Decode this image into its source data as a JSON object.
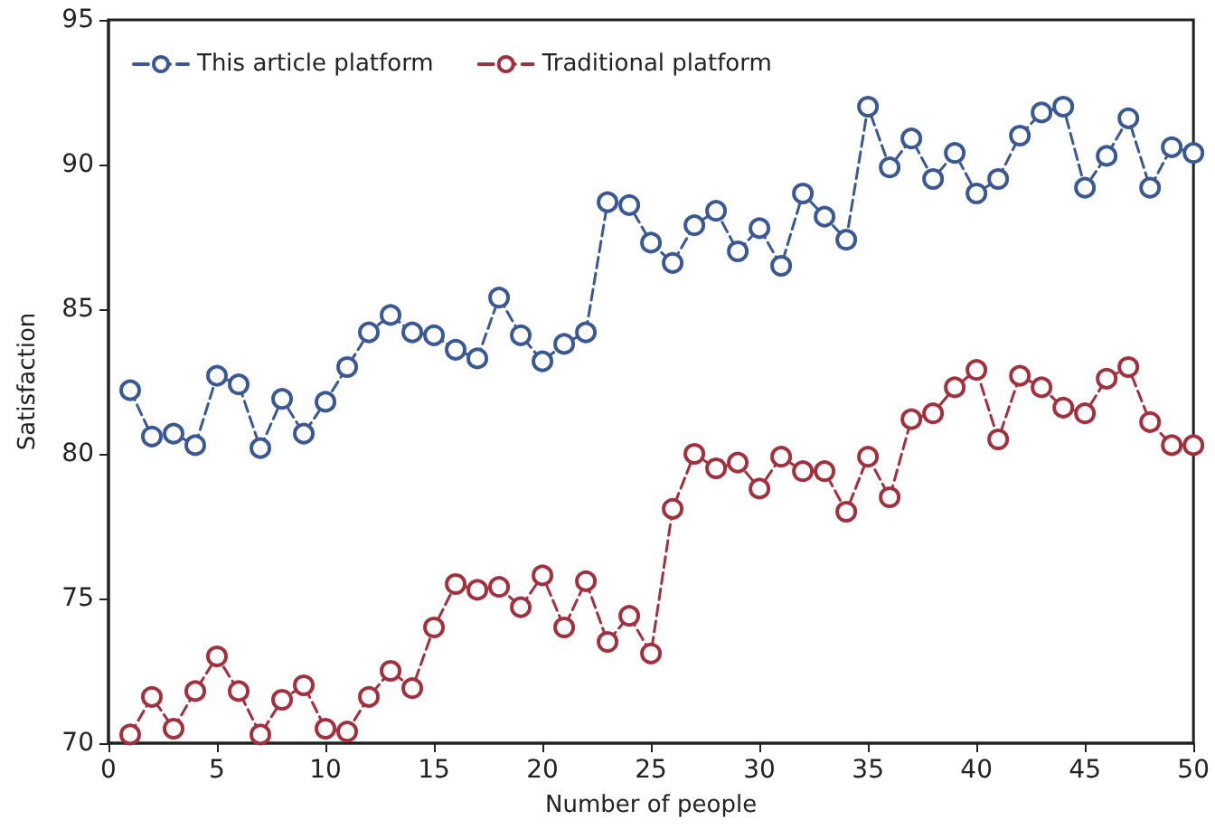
{
  "chart_data": {
    "type": "line",
    "xlabel": "Number of people",
    "ylabel": "Satisfaction",
    "x": [
      1,
      2,
      3,
      4,
      5,
      6,
      7,
      8,
      9,
      10,
      11,
      12,
      13,
      14,
      15,
      16,
      17,
      18,
      19,
      20,
      21,
      22,
      23,
      24,
      25,
      26,
      27,
      28,
      29,
      30,
      31,
      32,
      33,
      34,
      35,
      36,
      37,
      38,
      39,
      40,
      41,
      42,
      43,
      44,
      45,
      46,
      47,
      48,
      49,
      50
    ],
    "series": [
      {
        "name": "This article platform",
        "color": "#3a5894",
        "values": [
          82.2,
          80.6,
          80.7,
          80.3,
          82.7,
          82.4,
          80.2,
          81.9,
          80.7,
          81.8,
          83.0,
          84.2,
          84.8,
          84.2,
          84.1,
          83.6,
          83.3,
          85.4,
          84.1,
          83.2,
          83.8,
          84.2,
          88.7,
          88.6,
          87.3,
          86.6,
          87.9,
          88.4,
          87.0,
          87.8,
          86.5,
          89.0,
          88.2,
          87.4,
          92.0,
          89.9,
          90.9,
          89.5,
          90.4,
          89.0,
          89.5,
          91.0,
          91.8,
          92.0,
          89.2,
          90.3,
          91.6,
          89.2,
          90.6,
          90.4
        ]
      },
      {
        "name": "Traditional platform",
        "color": "#a3303f",
        "values": [
          70.3,
          71.6,
          70.5,
          71.8,
          73.0,
          71.8,
          70.3,
          71.5,
          72.0,
          70.5,
          70.4,
          71.6,
          72.5,
          71.9,
          74.0,
          75.5,
          75.3,
          75.4,
          74.7,
          75.8,
          74.0,
          75.6,
          73.5,
          74.4,
          73.1,
          78.1,
          80.0,
          79.5,
          79.7,
          78.8,
          79.9,
          79.4,
          79.4,
          78.0,
          79.9,
          78.5,
          81.2,
          81.4,
          82.3,
          82.9,
          80.5,
          82.7,
          82.3,
          81.6,
          81.4,
          82.6,
          83.0,
          81.1,
          80.3,
          80.3
        ]
      }
    ],
    "xlim": [
      0,
      50
    ],
    "xticks": [
      0,
      5,
      10,
      15,
      20,
      25,
      30,
      35,
      40,
      45,
      50
    ],
    "ylim": [
      70,
      95
    ],
    "yticks": [
      70,
      75,
      80,
      85,
      90,
      95
    ],
    "grid": false,
    "legend": "top left",
    "marker": "circle",
    "line_style": "dashed"
  }
}
